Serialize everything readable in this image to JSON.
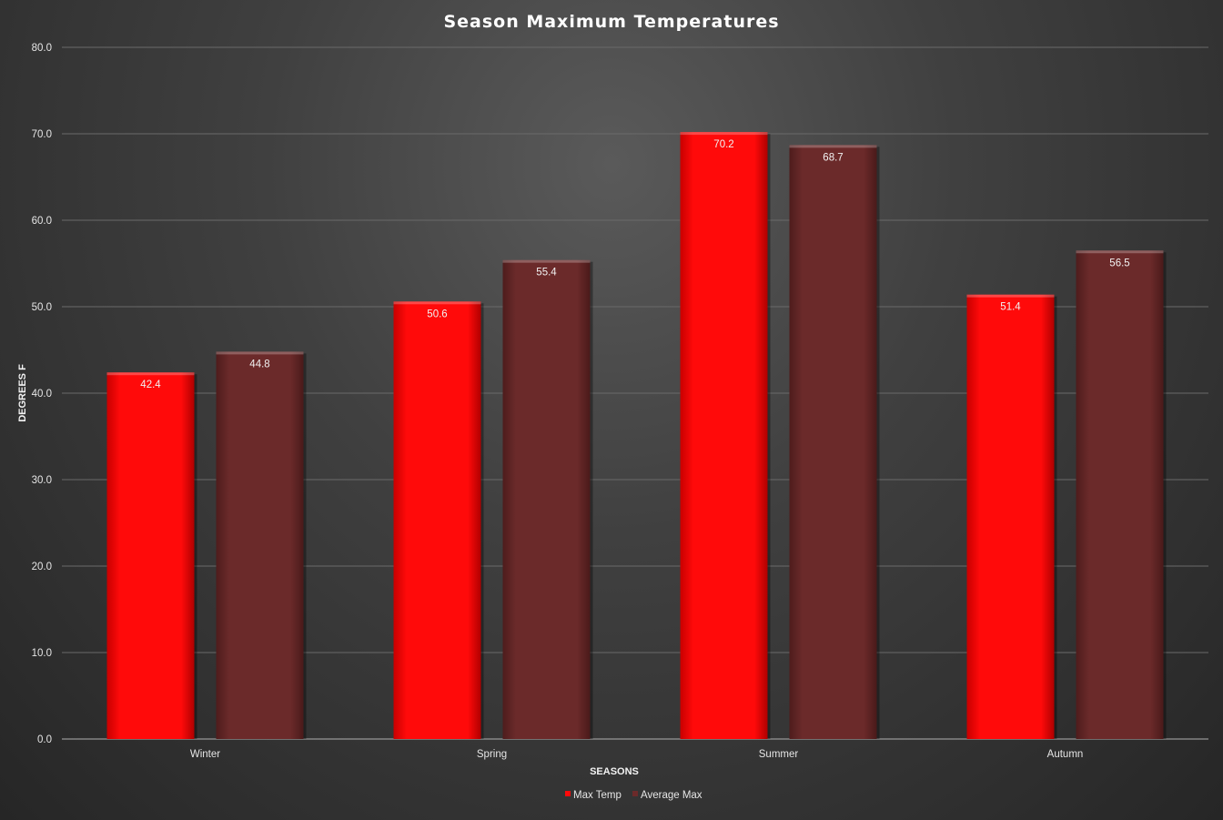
{
  "chart_data": {
    "type": "bar",
    "title": "Season Maximum Temperatures",
    "xlabel": "SEASONS",
    "ylabel": "DEGREES F",
    "categories": [
      "Winter",
      "Spring",
      "Summer",
      "Autumn"
    ],
    "series": [
      {
        "name": "Max Temp",
        "values": [
          42.4,
          50.6,
          70.2,
          51.4
        ],
        "color": "#ff0a0a"
      },
      {
        "name": "Average Max",
        "values": [
          44.8,
          55.4,
          68.7,
          56.5
        ],
        "color": "#6b2a2a"
      }
    ],
    "ylim": [
      0,
      80
    ],
    "yticks": [
      "0.0",
      "10.0",
      "20.0",
      "30.0",
      "40.0",
      "50.0",
      "60.0",
      "70.0",
      "80.0"
    ],
    "grid": true,
    "legend_position": "bottom",
    "data_labels": true
  }
}
